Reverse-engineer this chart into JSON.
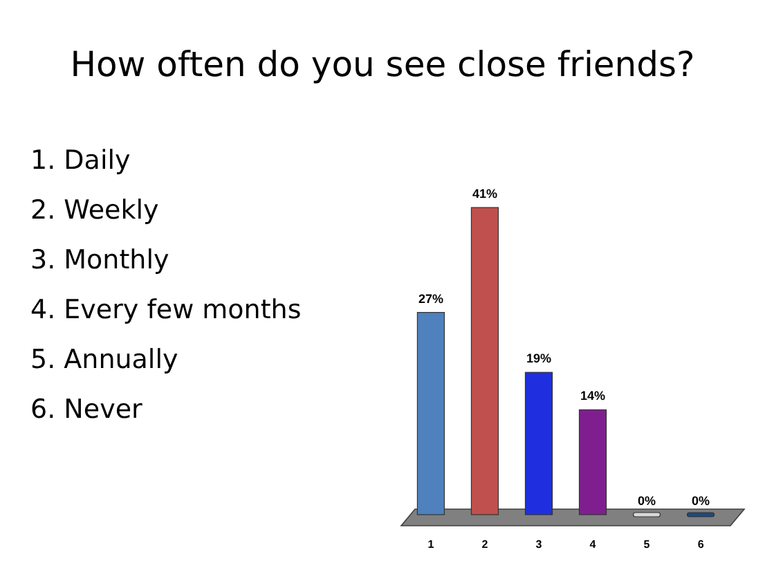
{
  "chart_data": {
    "type": "bar",
    "title": "How often do you see close friends?",
    "categories": [
      "1",
      "2",
      "3",
      "4",
      "5",
      "6"
    ],
    "values": [
      27,
      41,
      19,
      14,
      0,
      0
    ],
    "colors": [
      "#4f81bd",
      "#c0504d",
      "#1f2fe0",
      "#7f1f8f",
      "#d9d9d9",
      "#1f497d"
    ],
    "value_labels": [
      "27%",
      "41%",
      "19%",
      "14%",
      "0%",
      "0%"
    ],
    "annotations": [
      "1.  Daily",
      "2.  Weekly",
      "3.  Monthly",
      "4.  Every few months",
      "5.  Annually",
      "6.  Never"
    ]
  }
}
